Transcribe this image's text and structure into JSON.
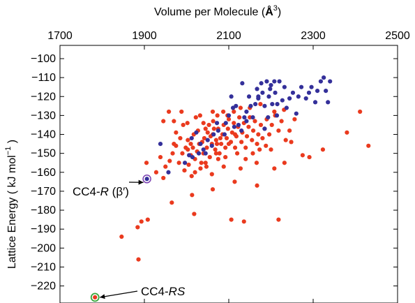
{
  "chart_data": {
    "type": "scatter",
    "xlabel_top": "Volume per Molecule",
    "xlabel_unit": "Å",
    "xlabel_unit_exp": "3",
    "ylabel": "Lattice Energy ( kJ mol",
    "ylabel_exp": "−1",
    "ylabel_close": " )",
    "xlim": [
      1700,
      2500
    ],
    "ylim": [
      -229,
      -93
    ],
    "xticks": [
      "1700",
      "1900",
      "2100",
      "2300",
      "2500"
    ],
    "yticks": [
      "−100",
      "−110",
      "−120",
      "−130",
      "−140",
      "−150",
      "−160",
      "−170",
      "−180",
      "−190",
      "−200",
      "−210",
      "−220"
    ],
    "grid": false,
    "colors": {
      "red": "#ea3a1e",
      "blue": "#34309a",
      "highlight_ring": "#7a3fb0",
      "highlight_ring2": "#3aa83a"
    },
    "annotations": [
      {
        "prefix": "CC4-",
        "italic": "R",
        "suffix": " (β′)",
        "point": [
          1906,
          -163.5
        ]
      },
      {
        "prefix": "CC4-",
        "italic": "RS",
        "suffix": "",
        "point": [
          1783,
          -226
        ]
      }
    ],
    "series": [
      {
        "color": "red",
        "points": [
          [
            1783,
            -226
          ],
          [
            1886,
            -206
          ],
          [
            1846,
            -194
          ],
          [
            1884,
            -189
          ],
          [
            1908,
            -185
          ],
          [
            1893,
            -186
          ],
          [
            1965,
            -176
          ],
          [
            2018,
            -182
          ],
          [
            2013,
            -172
          ],
          [
            2062,
            -169
          ],
          [
            2106,
            -185
          ],
          [
            2136,
            -186
          ],
          [
            2167,
            -167
          ],
          [
            2114,
            -165
          ],
          [
            2166,
            -155
          ],
          [
            2208,
            -158
          ],
          [
            2232,
            -155
          ],
          [
            2218,
            -185
          ],
          [
            2275,
            -151
          ],
          [
            2291,
            -152
          ],
          [
            2323,
            -148
          ],
          [
            2380,
            -139
          ],
          [
            2411,
            -128
          ],
          [
            2431,
            -146
          ],
          [
            1905,
            -155
          ],
          [
            1928,
            -160
          ],
          [
            1945,
            -163
          ],
          [
            1950,
            -157
          ],
          [
            1938,
            -152
          ],
          [
            1960,
            -154
          ],
          [
            1967,
            -150
          ],
          [
            1975,
            -146
          ],
          [
            1982,
            -155
          ],
          [
            1990,
            -150
          ],
          [
            1995,
            -159
          ],
          [
            2005,
            -156
          ],
          [
            2010,
            -151
          ],
          [
            2015,
            -147
          ],
          [
            2020,
            -153
          ],
          [
            2025,
            -149
          ],
          [
            2030,
            -145
          ],
          [
            2035,
            -155
          ],
          [
            2040,
            -150
          ],
          [
            2042,
            -142
          ],
          [
            2048,
            -147
          ],
          [
            2050,
            -139
          ],
          [
            2055,
            -152
          ],
          [
            2060,
            -145
          ],
          [
            2062,
            -140
          ],
          [
            2068,
            -148
          ],
          [
            2070,
            -143
          ],
          [
            2075,
            -137
          ],
          [
            2078,
            -150
          ],
          [
            2082,
            -145
          ],
          [
            2085,
            -140
          ],
          [
            2088,
            -135
          ],
          [
            2092,
            -147
          ],
          [
            2095,
            -142
          ],
          [
            2098,
            -137
          ],
          [
            2100,
            -132
          ],
          [
            2105,
            -144
          ],
          [
            2108,
            -139
          ],
          [
            2112,
            -134
          ],
          [
            2115,
            -147
          ],
          [
            2118,
            -141
          ],
          [
            2122,
            -136
          ],
          [
            2125,
            -131
          ],
          [
            2130,
            -144
          ],
          [
            2132,
            -139
          ],
          [
            2136,
            -134
          ],
          [
            2140,
            -147
          ],
          [
            2143,
            -141
          ],
          [
            2147,
            -136
          ],
          [
            2150,
            -131
          ],
          [
            2155,
            -143
          ],
          [
            2158,
            -138
          ],
          [
            2162,
            -133
          ],
          [
            2167,
            -145
          ],
          [
            2170,
            -140
          ],
          [
            2176,
            -135
          ],
          [
            2180,
            -142
          ],
          [
            2185,
            -137
          ],
          [
            2190,
            -132
          ],
          [
            2196,
            -140
          ],
          [
            2202,
            -135
          ],
          [
            2210,
            -130
          ],
          [
            2218,
            -138
          ],
          [
            2225,
            -133
          ],
          [
            2235,
            -143
          ],
          [
            2244,
            -138
          ],
          [
            2256,
            -132
          ],
          [
            2017,
            -140
          ],
          [
            2027,
            -138
          ],
          [
            2037,
            -144
          ],
          [
            2045,
            -137
          ],
          [
            2057,
            -141
          ],
          [
            2065,
            -137
          ],
          [
            2072,
            -145
          ],
          [
            2080,
            -142
          ],
          [
            2003,
            -143
          ],
          [
            1998,
            -147
          ],
          [
            1985,
            -142
          ],
          [
            1975,
            -139
          ],
          [
            1970,
            -133
          ],
          [
            1958,
            -128
          ],
          [
            1945,
            -133
          ],
          [
            2053,
            -135
          ],
          [
            2063,
            -133
          ],
          [
            2073,
            -130
          ],
          [
            2087,
            -128
          ],
          [
            2097,
            -130
          ],
          [
            2112,
            -128
          ],
          [
            2128,
            -126
          ],
          [
            2020,
            -160
          ],
          [
            2033,
            -158
          ],
          [
            2047,
            -157
          ],
          [
            2003,
            -148
          ],
          [
            2010,
            -145
          ],
          [
            2045,
            -155
          ],
          [
            2075,
            -153
          ],
          [
            2092,
            -152
          ],
          [
            2120,
            -150
          ],
          [
            2140,
            -153
          ],
          [
            2157,
            -150
          ],
          [
            2173,
            -148
          ],
          [
            2188,
            -146
          ],
          [
            2200,
            -148
          ],
          [
            2115,
            -140
          ],
          [
            2100,
            -145
          ],
          [
            2070,
            -150
          ],
          [
            1992,
            -135
          ],
          [
            2002,
            -134
          ],
          [
            2022,
            -131
          ],
          [
            2032,
            -130
          ],
          [
            2040,
            -134
          ],
          [
            2062,
            -128
          ],
          [
            2150,
            -126
          ],
          [
            2175,
            -124
          ],
          [
            2208,
            -128
          ],
          [
            2231,
            -127
          ],
          [
            2248,
            -144
          ],
          [
            2012,
            -162
          ],
          [
            2060,
            -161
          ],
          [
            2088,
            -157
          ],
          [
            2128,
            -158
          ],
          [
            1970,
            -145
          ],
          [
            1988,
            -128
          ]
        ]
      },
      {
        "color": "blue",
        "points": [
          [
            1906,
            -163.5
          ],
          [
            1938,
            -145
          ],
          [
            1957,
            -160
          ],
          [
            1996,
            -155
          ],
          [
            2014,
            -152
          ],
          [
            2029,
            -150
          ],
          [
            2045,
            -150
          ],
          [
            2060,
            -146
          ],
          [
            2064,
            -140
          ],
          [
            2075,
            -138
          ],
          [
            2090,
            -140
          ],
          [
            2100,
            -130
          ],
          [
            2106,
            -120
          ],
          [
            2110,
            -126
          ],
          [
            2117,
            -125
          ],
          [
            2123,
            -135
          ],
          [
            2130,
            -138
          ],
          [
            2137,
            -131
          ],
          [
            2142,
            -128
          ],
          [
            2148,
            -120
          ],
          [
            2152,
            -125
          ],
          [
            2157,
            -131
          ],
          [
            2163,
            -124
          ],
          [
            2167,
            -116
          ],
          [
            2170,
            -120
          ],
          [
            2177,
            -113
          ],
          [
            2180,
            -118
          ],
          [
            2185,
            -125
          ],
          [
            2190,
            -112
          ],
          [
            2193,
            -131
          ],
          [
            2195,
            -120
          ],
          [
            2200,
            -114
          ],
          [
            2203,
            -124
          ],
          [
            2208,
            -112
          ],
          [
            2210,
            -118
          ],
          [
            2214,
            -130
          ],
          [
            2220,
            -112
          ],
          [
            2227,
            -122
          ],
          [
            2232,
            -115
          ],
          [
            2237,
            -126
          ],
          [
            2244,
            -121
          ],
          [
            2252,
            -118
          ],
          [
            2260,
            -129
          ],
          [
            2265,
            -120
          ],
          [
            2272,
            -115
          ],
          [
            2283,
            -121
          ],
          [
            2290,
            -118
          ],
          [
            2296,
            -115
          ],
          [
            2305,
            -123
          ],
          [
            2310,
            -117
          ],
          [
            2318,
            -112
          ],
          [
            2325,
            -110
          ],
          [
            2330,
            -117
          ],
          [
            2335,
            -123
          ],
          [
            2340,
            -112
          ],
          [
            2113,
            -136
          ],
          [
            2093,
            -134
          ],
          [
            2072,
            -134
          ],
          [
            2050,
            -143
          ],
          [
            2040,
            -148
          ],
          [
            2033,
            -145
          ],
          [
            2023,
            -139
          ],
          [
            2012,
            -142
          ],
          [
            2006,
            -151
          ],
          [
            2170,
            -121
          ],
          [
            2132,
            -113
          ],
          [
            2142,
            -133
          ],
          [
            2185,
            -137
          ],
          [
            2198,
            -116
          ],
          [
            2215,
            -124
          ]
        ]
      }
    ]
  }
}
